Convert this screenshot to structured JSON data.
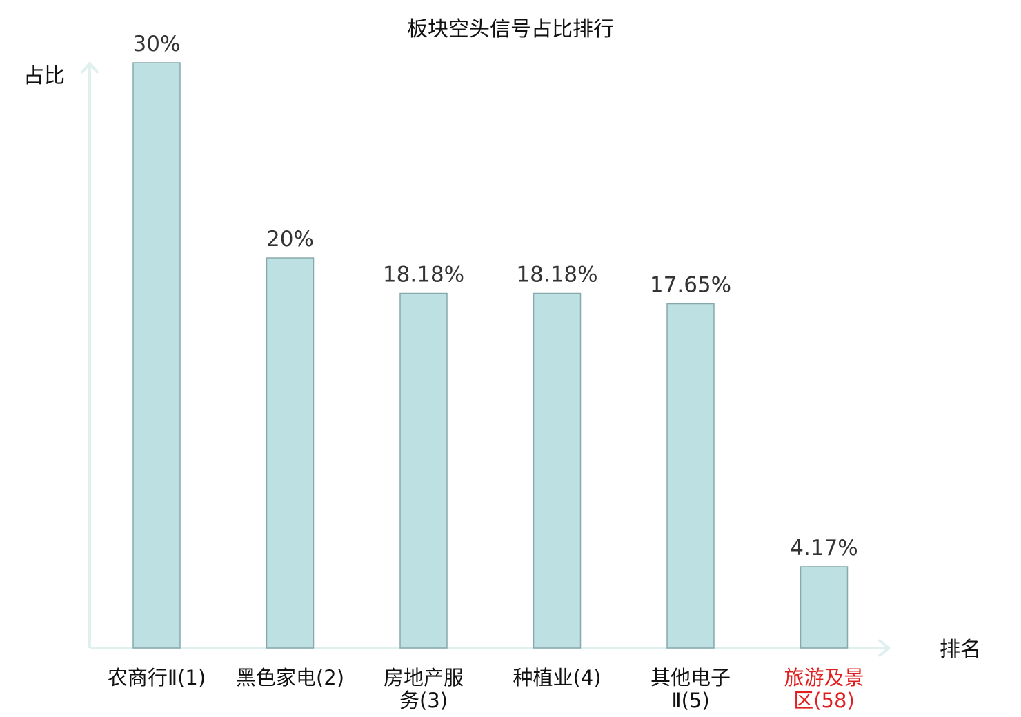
{
  "chart_data": {
    "type": "bar",
    "title": "板块空头信号占比排行",
    "ylabel": "占比",
    "xlabel": "排名",
    "categories": [
      [
        "农商行Ⅱ(1)"
      ],
      [
        "黑色家电(2)"
      ],
      [
        "房地产服",
        "务(3)"
      ],
      [
        "种植业(4)"
      ],
      [
        "其他电子",
        "Ⅱ(5)"
      ],
      [
        "旅游及景",
        "区(58)"
      ]
    ],
    "values": [
      30,
      20,
      18.18,
      18.18,
      17.65,
      4.17
    ],
    "value_labels": [
      "30%",
      "20%",
      "18.18%",
      "18.18%",
      "17.65%",
      "4.17%"
    ],
    "highlight_index": 5,
    "ylim": [
      0,
      30
    ],
    "grid": false,
    "colors": {
      "bar_fill": "#bde0e3",
      "bar_stroke": "#86a9ad",
      "axis": "#dff0ee",
      "highlight_text": "#e02020"
    }
  }
}
